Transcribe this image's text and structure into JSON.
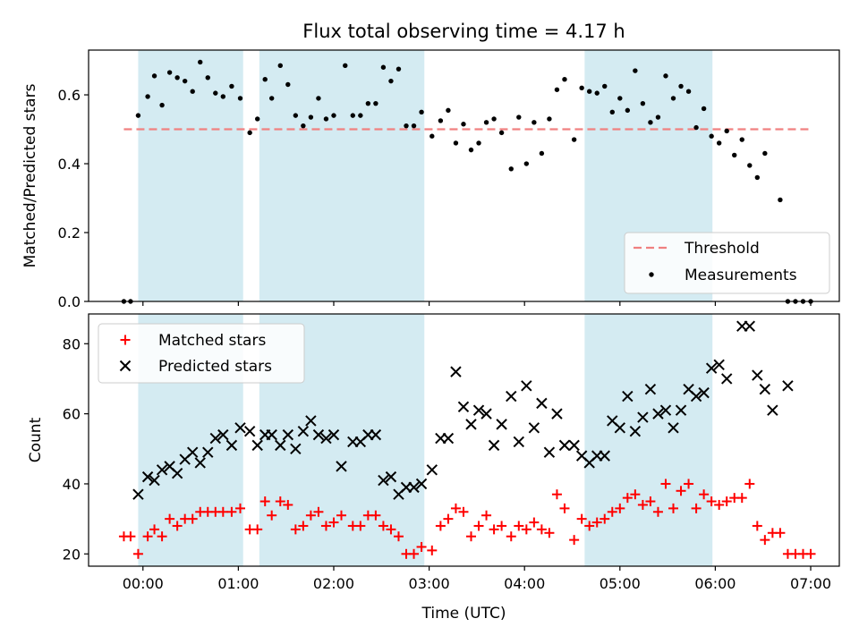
{
  "chart_data": [
    {
      "type": "scatter",
      "title": "Flux total observing time = 4.17 h",
      "ylabel": "Matched/Predicted stars",
      "ylim": [
        0,
        0.73
      ],
      "yticks": [
        "0.0",
        "0.2",
        "0.4",
        "0.6"
      ],
      "threshold": {
        "name": "Threshold",
        "value": 0.5,
        "color": "#f08080"
      },
      "series": [
        {
          "name": "Measurements",
          "color": "#000000",
          "points": [
            [
              -0.2,
              0.0
            ],
            [
              -0.13,
              0.0
            ],
            [
              -0.05,
              0.54
            ],
            [
              0.05,
              0.595
            ],
            [
              0.12,
              0.655
            ],
            [
              0.2,
              0.57
            ],
            [
              0.28,
              0.665
            ],
            [
              0.36,
              0.65
            ],
            [
              0.44,
              0.64
            ],
            [
              0.52,
              0.61
            ],
            [
              0.6,
              0.695
            ],
            [
              0.68,
              0.65
            ],
            [
              0.76,
              0.605
            ],
            [
              0.84,
              0.595
            ],
            [
              0.93,
              0.625
            ],
            [
              1.02,
              0.59
            ],
            [
              1.12,
              0.49
            ],
            [
              1.2,
              0.53
            ],
            [
              1.28,
              0.645
            ],
            [
              1.35,
              0.59
            ],
            [
              1.44,
              0.685
            ],
            [
              1.52,
              0.63
            ],
            [
              1.6,
              0.54
            ],
            [
              1.68,
              0.51
            ],
            [
              1.76,
              0.535
            ],
            [
              1.84,
              0.59
            ],
            [
              1.92,
              0.53
            ],
            [
              2.0,
              0.54
            ],
            [
              2.12,
              0.685
            ],
            [
              2.2,
              0.54
            ],
            [
              2.28,
              0.54
            ],
            [
              2.36,
              0.575
            ],
            [
              2.44,
              0.575
            ],
            [
              2.52,
              0.68
            ],
            [
              2.6,
              0.64
            ],
            [
              2.68,
              0.675
            ],
            [
              2.76,
              0.51
            ],
            [
              2.84,
              0.51
            ],
            [
              2.92,
              0.55
            ],
            [
              3.03,
              0.48
            ],
            [
              3.12,
              0.525
            ],
            [
              3.2,
              0.555
            ],
            [
              3.28,
              0.46
            ],
            [
              3.36,
              0.515
            ],
            [
              3.44,
              0.44
            ],
            [
              3.52,
              0.46
            ],
            [
              3.6,
              0.52
            ],
            [
              3.68,
              0.53
            ],
            [
              3.76,
              0.49
            ],
            [
              3.86,
              0.385
            ],
            [
              3.94,
              0.535
            ],
            [
              4.02,
              0.4
            ],
            [
              4.1,
              0.52
            ],
            [
              4.18,
              0.43
            ],
            [
              4.26,
              0.53
            ],
            [
              4.34,
              0.615
            ],
            [
              4.42,
              0.645
            ],
            [
              4.52,
              0.47
            ],
            [
              4.6,
              0.62
            ],
            [
              4.68,
              0.61
            ],
            [
              4.76,
              0.605
            ],
            [
              4.84,
              0.625
            ],
            [
              4.92,
              0.55
            ],
            [
              5.0,
              0.59
            ],
            [
              5.08,
              0.555
            ],
            [
              5.16,
              0.67
            ],
            [
              5.24,
              0.575
            ],
            [
              5.32,
              0.52
            ],
            [
              5.4,
              0.535
            ],
            [
              5.48,
              0.655
            ],
            [
              5.56,
              0.59
            ],
            [
              5.64,
              0.625
            ],
            [
              5.72,
              0.61
            ],
            [
              5.8,
              0.505
            ],
            [
              5.88,
              0.56
            ],
            [
              5.96,
              0.48
            ],
            [
              6.04,
              0.46
            ],
            [
              6.12,
              0.495
            ],
            [
              6.2,
              0.425
            ],
            [
              6.28,
              0.47
            ],
            [
              6.36,
              0.395
            ],
            [
              6.44,
              0.36
            ],
            [
              6.52,
              0.43
            ],
            [
              6.68,
              0.295
            ],
            [
              6.76,
              0.0
            ],
            [
              6.84,
              0.0
            ],
            [
              6.92,
              0.0
            ],
            [
              7.0,
              0.0
            ]
          ]
        }
      ]
    },
    {
      "type": "scatter",
      "xlabel": "Time (UTC)",
      "ylabel": "Count",
      "ylim": [
        16.5,
        88.5
      ],
      "yticks": [
        "20",
        "40",
        "60",
        "80"
      ],
      "xlim": [
        -0.57,
        7.3
      ],
      "xticks": [
        "00:00",
        "01:00",
        "02:00",
        "03:00",
        "04:00",
        "05:00",
        "06:00",
        "07:00"
      ],
      "shaded_intervals_hours": [
        [
          -0.05,
          1.05
        ],
        [
          1.22,
          2.95
        ],
        [
          4.63,
          5.97
        ]
      ],
      "series": [
        {
          "name": "Matched stars",
          "marker": "+",
          "color": "#ff0000",
          "points": [
            [
              -0.2,
              25
            ],
            [
              -0.13,
              25
            ],
            [
              -0.05,
              20
            ],
            [
              0.05,
              25
            ],
            [
              0.12,
              27
            ],
            [
              0.2,
              25
            ],
            [
              0.28,
              30
            ],
            [
              0.36,
              28
            ],
            [
              0.44,
              30
            ],
            [
              0.52,
              30
            ],
            [
              0.6,
              32
            ],
            [
              0.68,
              32
            ],
            [
              0.76,
              32
            ],
            [
              0.84,
              32
            ],
            [
              0.93,
              32
            ],
            [
              1.02,
              33
            ],
            [
              1.12,
              27
            ],
            [
              1.2,
              27
            ],
            [
              1.28,
              35
            ],
            [
              1.35,
              31
            ],
            [
              1.44,
              35
            ],
            [
              1.52,
              34
            ],
            [
              1.6,
              27
            ],
            [
              1.68,
              28
            ],
            [
              1.76,
              31
            ],
            [
              1.84,
              32
            ],
            [
              1.92,
              28
            ],
            [
              2.0,
              29
            ],
            [
              2.08,
              31
            ],
            [
              2.2,
              28
            ],
            [
              2.28,
              28
            ],
            [
              2.36,
              31
            ],
            [
              2.44,
              31
            ],
            [
              2.52,
              28
            ],
            [
              2.6,
              27
            ],
            [
              2.68,
              25
            ],
            [
              2.76,
              20
            ],
            [
              2.84,
              20
            ],
            [
              2.92,
              22
            ],
            [
              3.03,
              21
            ],
            [
              3.12,
              28
            ],
            [
              3.2,
              30
            ],
            [
              3.28,
              33
            ],
            [
              3.36,
              32
            ],
            [
              3.44,
              25
            ],
            [
              3.52,
              28
            ],
            [
              3.6,
              31
            ],
            [
              3.68,
              27
            ],
            [
              3.76,
              28
            ],
            [
              3.86,
              25
            ],
            [
              3.94,
              28
            ],
            [
              4.02,
              27
            ],
            [
              4.1,
              29
            ],
            [
              4.18,
              27
            ],
            [
              4.26,
              26
            ],
            [
              4.34,
              37
            ],
            [
              4.42,
              33
            ],
            [
              4.52,
              24
            ],
            [
              4.6,
              30
            ],
            [
              4.68,
              28
            ],
            [
              4.76,
              29
            ],
            [
              4.84,
              30
            ],
            [
              4.92,
              32
            ],
            [
              5.0,
              33
            ],
            [
              5.08,
              36
            ],
            [
              5.16,
              37
            ],
            [
              5.24,
              34
            ],
            [
              5.32,
              35
            ],
            [
              5.4,
              32
            ],
            [
              5.48,
              40
            ],
            [
              5.56,
              33
            ],
            [
              5.64,
              38
            ],
            [
              5.72,
              40
            ],
            [
              5.8,
              33
            ],
            [
              5.88,
              37
            ],
            [
              5.96,
              35
            ],
            [
              6.04,
              34
            ],
            [
              6.12,
              35
            ],
            [
              6.2,
              36
            ],
            [
              6.28,
              36
            ],
            [
              6.36,
              40
            ],
            [
              6.44,
              28
            ],
            [
              6.52,
              24
            ],
            [
              6.6,
              26
            ],
            [
              6.68,
              26
            ],
            [
              6.76,
              20
            ],
            [
              6.84,
              20
            ],
            [
              6.92,
              20
            ],
            [
              7.0,
              20
            ]
          ]
        },
        {
          "name": "Predicted stars",
          "marker": "x",
          "color": "#000000",
          "points": [
            [
              -0.05,
              37
            ],
            [
              0.05,
              42
            ],
            [
              0.12,
              41
            ],
            [
              0.2,
              44
            ],
            [
              0.28,
              45
            ],
            [
              0.36,
              43
            ],
            [
              0.44,
              47
            ],
            [
              0.52,
              49
            ],
            [
              0.6,
              46
            ],
            [
              0.68,
              49
            ],
            [
              0.76,
              53
            ],
            [
              0.84,
              54
            ],
            [
              0.93,
              51
            ],
            [
              1.02,
              56
            ],
            [
              1.12,
              55
            ],
            [
              1.2,
              51
            ],
            [
              1.28,
              54
            ],
            [
              1.35,
              54
            ],
            [
              1.44,
              51
            ],
            [
              1.52,
              54
            ],
            [
              1.6,
              50
            ],
            [
              1.68,
              55
            ],
            [
              1.76,
              58
            ],
            [
              1.84,
              54
            ],
            [
              1.92,
              53
            ],
            [
              2.0,
              54
            ],
            [
              2.08,
              45
            ],
            [
              2.2,
              52
            ],
            [
              2.28,
              52
            ],
            [
              2.36,
              54
            ],
            [
              2.44,
              54
            ],
            [
              2.52,
              41
            ],
            [
              2.6,
              42
            ],
            [
              2.68,
              37
            ],
            [
              2.76,
              39
            ],
            [
              2.84,
              39
            ],
            [
              2.92,
              40
            ],
            [
              3.03,
              44
            ],
            [
              3.12,
              53
            ],
            [
              3.2,
              53
            ],
            [
              3.28,
              72
            ],
            [
              3.36,
              62
            ],
            [
              3.44,
              57
            ],
            [
              3.52,
              61
            ],
            [
              3.6,
              60
            ],
            [
              3.68,
              51
            ],
            [
              3.76,
              57
            ],
            [
              3.86,
              65
            ],
            [
              3.94,
              52
            ],
            [
              4.02,
              68
            ],
            [
              4.1,
              56
            ],
            [
              4.18,
              63
            ],
            [
              4.26,
              49
            ],
            [
              4.34,
              60
            ],
            [
              4.42,
              51
            ],
            [
              4.52,
              51
            ],
            [
              4.6,
              48
            ],
            [
              4.68,
              46
            ],
            [
              4.76,
              48
            ],
            [
              4.84,
              48
            ],
            [
              4.92,
              58
            ],
            [
              5.0,
              56
            ],
            [
              5.08,
              65
            ],
            [
              5.16,
              55
            ],
            [
              5.24,
              59
            ],
            [
              5.32,
              67
            ],
            [
              5.4,
              60
            ],
            [
              5.48,
              61
            ],
            [
              5.56,
              56
            ],
            [
              5.64,
              61
            ],
            [
              5.72,
              67
            ],
            [
              5.8,
              65
            ],
            [
              5.88,
              66
            ],
            [
              5.96,
              73
            ],
            [
              6.04,
              74
            ],
            [
              6.12,
              70
            ],
            [
              6.28,
              85
            ],
            [
              6.36,
              85
            ],
            [
              6.44,
              71
            ],
            [
              6.52,
              67
            ],
            [
              6.6,
              61
            ],
            [
              6.76,
              68
            ]
          ]
        }
      ]
    }
  ],
  "colors": {
    "shade": "#add8e6",
    "threshold": "#f08080"
  }
}
